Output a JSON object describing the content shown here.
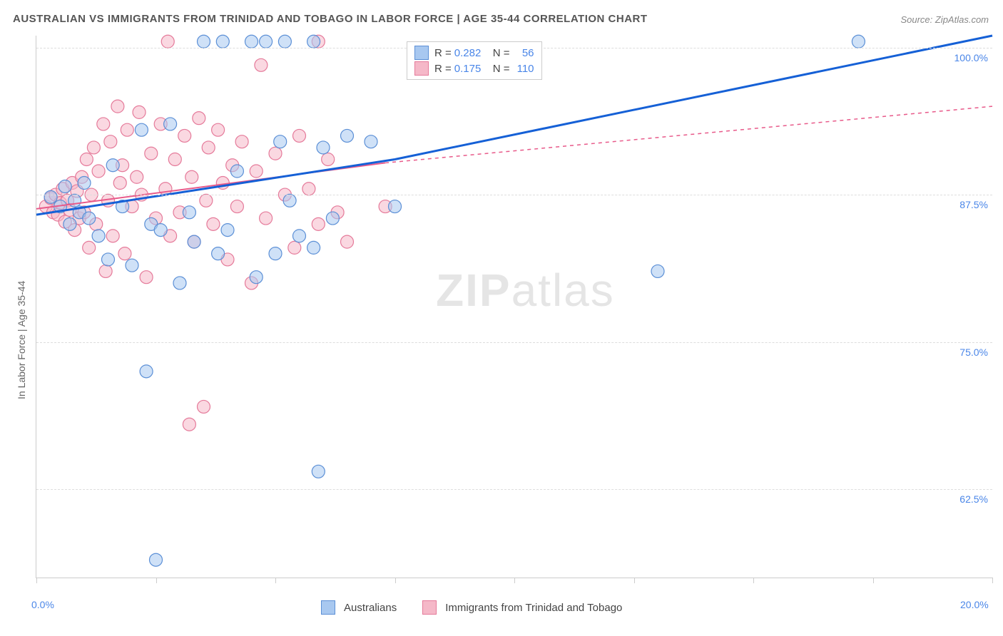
{
  "title": "AUSTRALIAN VS IMMIGRANTS FROM TRINIDAD AND TOBAGO IN LABOR FORCE | AGE 35-44 CORRELATION CHART",
  "title_fontsize": 15,
  "title_color": "#555555",
  "source_label": "Source: ZipAtlas.com",
  "source_color": "#888888",
  "y_axis_label": "In Labor Force | Age 35-44",
  "watermark_text_bold": "ZIP",
  "watermark_text_light": "atlas",
  "chart": {
    "type": "scatter",
    "background_color": "#ffffff",
    "grid_color": "#dddddd",
    "axis_color": "#cccccc",
    "xlim": [
      0,
      20
    ],
    "ylim": [
      55,
      101
    ],
    "x_ticks": [
      0,
      2.5,
      5,
      7.5,
      10,
      12.5,
      15,
      17.5,
      20
    ],
    "x_tick_labels": {
      "0": "0.0%",
      "20": "20.0%"
    },
    "x_label_color": "#4a86e8",
    "y_gridlines": [
      62.5,
      75,
      87.5,
      100
    ],
    "y_tick_labels": {
      "62.5": "62.5%",
      "75": "75.0%",
      "87.5": "87.5%",
      "100": "100.0%"
    },
    "y_label_color": "#4a86e8",
    "series": [
      {
        "name": "Australians",
        "marker_fill": "#a8c8f0",
        "marker_stroke": "#5b8fd6",
        "marker_opacity": 0.55,
        "marker_radius": 9,
        "line_color": "#1560d6",
        "line_width": 3,
        "line_dash_extrapolate": "4,4",
        "R": "0.282",
        "N": "56",
        "trend_start": {
          "x": 0,
          "y": 85.8
        },
        "trend_solid_end": {
          "x": 7.5,
          "y": 90.5
        },
        "trend_end": {
          "x": 20,
          "y": 101
        },
        "points": [
          {
            "x": 0.3,
            "y": 87.3
          },
          {
            "x": 0.5,
            "y": 86.5
          },
          {
            "x": 0.6,
            "y": 88.2
          },
          {
            "x": 0.7,
            "y": 85.0
          },
          {
            "x": 0.8,
            "y": 87.0
          },
          {
            "x": 0.9,
            "y": 86.0
          },
          {
            "x": 1.0,
            "y": 88.5
          },
          {
            "x": 1.1,
            "y": 85.5
          },
          {
            "x": 1.3,
            "y": 84.0
          },
          {
            "x": 1.5,
            "y": 82.0
          },
          {
            "x": 1.6,
            "y": 90.0
          },
          {
            "x": 1.8,
            "y": 86.5
          },
          {
            "x": 2.0,
            "y": 81.5
          },
          {
            "x": 2.2,
            "y": 93.0
          },
          {
            "x": 2.3,
            "y": 72.5
          },
          {
            "x": 2.4,
            "y": 85.0
          },
          {
            "x": 2.5,
            "y": 56.5
          },
          {
            "x": 2.6,
            "y": 84.5
          },
          {
            "x": 2.8,
            "y": 93.5
          },
          {
            "x": 3.0,
            "y": 80.0
          },
          {
            "x": 3.2,
            "y": 86.0
          },
          {
            "x": 3.3,
            "y": 83.5
          },
          {
            "x": 3.5,
            "y": 100.5
          },
          {
            "x": 3.8,
            "y": 82.5
          },
          {
            "x": 3.9,
            "y": 100.5
          },
          {
            "x": 4.0,
            "y": 84.5
          },
          {
            "x": 4.2,
            "y": 89.5
          },
          {
            "x": 4.5,
            "y": 100.5
          },
          {
            "x": 4.6,
            "y": 80.5
          },
          {
            "x": 4.8,
            "y": 100.5
          },
          {
            "x": 5.0,
            "y": 82.5
          },
          {
            "x": 5.1,
            "y": 92.0
          },
          {
            "x": 5.2,
            "y": 100.5
          },
          {
            "x": 5.3,
            "y": 87.0
          },
          {
            "x": 5.5,
            "y": 84.0
          },
          {
            "x": 5.8,
            "y": 83.0
          },
          {
            "x": 5.8,
            "y": 100.5
          },
          {
            "x": 5.9,
            "y": 64.0
          },
          {
            "x": 6.0,
            "y": 91.5
          },
          {
            "x": 6.2,
            "y": 85.5
          },
          {
            "x": 6.5,
            "y": 92.5
          },
          {
            "x": 7.0,
            "y": 92.0
          },
          {
            "x": 7.5,
            "y": 86.5
          },
          {
            "x": 13.0,
            "y": 81.0
          },
          {
            "x": 17.2,
            "y": 100.5
          }
        ]
      },
      {
        "name": "Immigrants from Trinidad and Tobago",
        "marker_fill": "#f5b8c8",
        "marker_stroke": "#e57a9a",
        "marker_opacity": 0.55,
        "marker_radius": 9,
        "line_color": "#e85a8a",
        "line_width": 2,
        "line_dash_extrapolate": "5,5",
        "R": "0.175",
        "N": "110",
        "trend_start": {
          "x": 0,
          "y": 86.3
        },
        "trend_solid_end": {
          "x": 7.3,
          "y": 90.2
        },
        "trend_end": {
          "x": 20,
          "y": 95.0
        },
        "points": [
          {
            "x": 0.2,
            "y": 86.5
          },
          {
            "x": 0.3,
            "y": 87.2
          },
          {
            "x": 0.35,
            "y": 86.0
          },
          {
            "x": 0.4,
            "y": 87.5
          },
          {
            "x": 0.45,
            "y": 85.8
          },
          {
            "x": 0.5,
            "y": 86.8
          },
          {
            "x": 0.55,
            "y": 88.0
          },
          {
            "x": 0.6,
            "y": 85.2
          },
          {
            "x": 0.65,
            "y": 87.0
          },
          {
            "x": 0.7,
            "y": 86.2
          },
          {
            "x": 0.75,
            "y": 88.5
          },
          {
            "x": 0.8,
            "y": 84.5
          },
          {
            "x": 0.85,
            "y": 87.8
          },
          {
            "x": 0.9,
            "y": 85.5
          },
          {
            "x": 0.95,
            "y": 89.0
          },
          {
            "x": 1.0,
            "y": 86.0
          },
          {
            "x": 1.05,
            "y": 90.5
          },
          {
            "x": 1.1,
            "y": 83.0
          },
          {
            "x": 1.15,
            "y": 87.5
          },
          {
            "x": 1.2,
            "y": 91.5
          },
          {
            "x": 1.25,
            "y": 85.0
          },
          {
            "x": 1.3,
            "y": 89.5
          },
          {
            "x": 1.4,
            "y": 93.5
          },
          {
            "x": 1.45,
            "y": 81.0
          },
          {
            "x": 1.5,
            "y": 87.0
          },
          {
            "x": 1.55,
            "y": 92.0
          },
          {
            "x": 1.6,
            "y": 84.0
          },
          {
            "x": 1.7,
            "y": 95.0
          },
          {
            "x": 1.75,
            "y": 88.5
          },
          {
            "x": 1.8,
            "y": 90.0
          },
          {
            "x": 1.85,
            "y": 82.5
          },
          {
            "x": 1.9,
            "y": 93.0
          },
          {
            "x": 2.0,
            "y": 86.5
          },
          {
            "x": 2.1,
            "y": 89.0
          },
          {
            "x": 2.15,
            "y": 94.5
          },
          {
            "x": 2.2,
            "y": 87.5
          },
          {
            "x": 2.3,
            "y": 80.5
          },
          {
            "x": 2.4,
            "y": 91.0
          },
          {
            "x": 2.5,
            "y": 85.5
          },
          {
            "x": 2.6,
            "y": 93.5
          },
          {
            "x": 2.7,
            "y": 88.0
          },
          {
            "x": 2.75,
            "y": 100.5
          },
          {
            "x": 2.8,
            "y": 84.0
          },
          {
            "x": 2.9,
            "y": 90.5
          },
          {
            "x": 3.0,
            "y": 86.0
          },
          {
            "x": 3.1,
            "y": 92.5
          },
          {
            "x": 3.2,
            "y": 68.0
          },
          {
            "x": 3.25,
            "y": 89.0
          },
          {
            "x": 3.3,
            "y": 83.5
          },
          {
            "x": 3.4,
            "y": 94.0
          },
          {
            "x": 3.5,
            "y": 69.5
          },
          {
            "x": 3.55,
            "y": 87.0
          },
          {
            "x": 3.6,
            "y": 91.5
          },
          {
            "x": 3.7,
            "y": 85.0
          },
          {
            "x": 3.8,
            "y": 93.0
          },
          {
            "x": 3.9,
            "y": 88.5
          },
          {
            "x": 4.0,
            "y": 82.0
          },
          {
            "x": 4.1,
            "y": 90.0
          },
          {
            "x": 4.2,
            "y": 86.5
          },
          {
            "x": 4.3,
            "y": 92.0
          },
          {
            "x": 4.5,
            "y": 80.0
          },
          {
            "x": 4.6,
            "y": 89.5
          },
          {
            "x": 4.7,
            "y": 98.5
          },
          {
            "x": 4.8,
            "y": 85.5
          },
          {
            "x": 5.0,
            "y": 91.0
          },
          {
            "x": 5.2,
            "y": 87.5
          },
          {
            "x": 5.4,
            "y": 83.0
          },
          {
            "x": 5.5,
            "y": 92.5
          },
          {
            "x": 5.7,
            "y": 88.0
          },
          {
            "x": 5.9,
            "y": 85.0
          },
          {
            "x": 5.9,
            "y": 100.5
          },
          {
            "x": 6.1,
            "y": 90.5
          },
          {
            "x": 6.3,
            "y": 86.0
          },
          {
            "x": 6.5,
            "y": 83.5
          },
          {
            "x": 7.3,
            "y": 86.5
          }
        ]
      }
    ],
    "legend_top": {
      "R_label": "R =",
      "N_label": "N =",
      "value_color": "#4a86e8"
    },
    "legend_bottom": [
      {
        "swatch_fill": "#a8c8f0",
        "swatch_stroke": "#5b8fd6",
        "label": "Australians"
      },
      {
        "swatch_fill": "#f5b8c8",
        "swatch_stroke": "#e57a9a",
        "label": "Immigrants from Trinidad and Tobago"
      }
    ]
  }
}
